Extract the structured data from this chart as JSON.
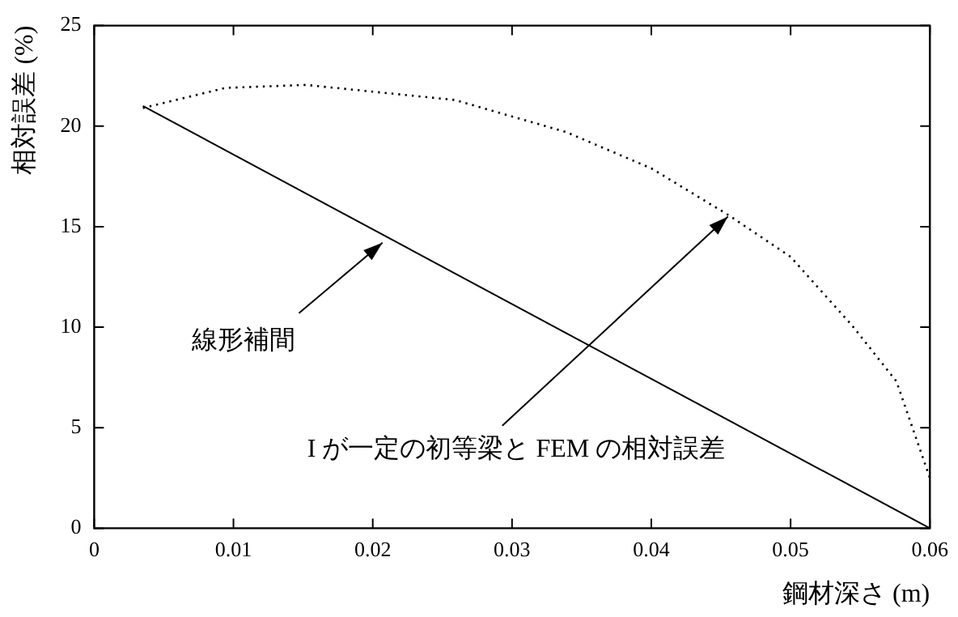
{
  "chart_data": {
    "type": "line",
    "xlabel": "鋼材深さ (m)",
    "ylabel": "相対誤差 (%)",
    "xlim": [
      0,
      0.06
    ],
    "xticks": [
      0,
      0.01,
      0.02,
      0.03,
      0.04,
      0.05,
      0.06
    ],
    "ylim": [
      0,
      25
    ],
    "yticks": [
      0,
      5,
      10,
      15,
      20,
      25
    ],
    "grid": false,
    "legend": false,
    "marker": "none",
    "series": [
      {
        "color": "#000000",
        "line_style": "solid",
        "x": [
          0.0035,
          0.06
        ],
        "values": [
          21.0,
          0
        ]
      },
      {
        "color": "#000000",
        "line_style": "dotted",
        "x": [
          0.0035,
          0.0094,
          0.0152,
          0.0259,
          0.0339,
          0.04,
          0.0456,
          0.05,
          0.0544,
          0.0576,
          0.0598,
          0.06
        ],
        "values": [
          20.9,
          21.9,
          22.05,
          21.3,
          19.7,
          17.9,
          15.55,
          13.5,
          10.1,
          7.3,
          2.9,
          2.5
        ]
      }
    ],
    "annotations": [
      {
        "text": "線形補間",
        "x": 0.0207,
        "y": 14.2
      },
      {
        "text": "I が一定の初等梁と FEM の相対誤差",
        "x": 0.0455,
        "y": 15.5
      }
    ]
  }
}
